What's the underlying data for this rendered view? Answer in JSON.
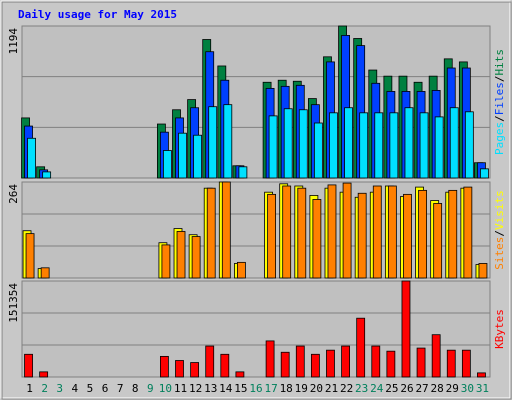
{
  "chart_data": [
    {
      "type": "bar",
      "title": "Daily usage for May 2015",
      "ylim": [
        0,
        1194
      ],
      "yticks": [
        1194
      ],
      "legend_separator": "/",
      "series": [
        {
          "name": "Pages",
          "color": "#00e0ff",
          "values": [
            312,
            48,
            0,
            0,
            0,
            0,
            0,
            0,
            0,
            216,
            352,
            336,
            560,
            576,
            88,
            0,
            488,
            544,
            536,
            432,
            512,
            552,
            512,
            512,
            512,
            552,
            512,
            480,
            552,
            520,
            72
          ]
        },
        {
          "name": "Files",
          "color": "#0040ff",
          "values": [
            408,
            64,
            0,
            0,
            0,
            0,
            0,
            0,
            0,
            360,
            472,
            552,
            992,
            768,
            96,
            0,
            704,
            720,
            728,
            576,
            912,
            1120,
            1040,
            744,
            680,
            680,
            680,
            688,
            864,
            864,
            120
          ]
        },
        {
          "name": "Hits",
          "color": "#008040",
          "values": [
            472,
            88,
            0,
            0,
            0,
            0,
            0,
            0,
            0,
            424,
            536,
            616,
            1088,
            880,
            96,
            0,
            752,
            768,
            760,
            624,
            952,
            1194,
            1096,
            848,
            800,
            800,
            752,
            800,
            936,
            912,
            120
          ]
        }
      ]
    },
    {
      "type": "bar",
      "ylim": [
        0,
        264
      ],
      "yticks": [
        264
      ],
      "legend_separator": "/",
      "series": [
        {
          "name": "Sites",
          "color": "#ff8000",
          "values": [
            122,
            28,
            0,
            0,
            0,
            0,
            0,
            0,
            0,
            91,
            128,
            114,
            247,
            264,
            43,
            0,
            230,
            253,
            247,
            216,
            256,
            261,
            233,
            253,
            253,
            230,
            241,
            205,
            241,
            250,
            40
          ]
        },
        {
          "name": "Visits",
          "color": "#ffff00",
          "values": [
            130,
            26,
            0,
            0,
            0,
            0,
            0,
            0,
            0,
            97,
            136,
            119,
            247,
            264,
            40,
            0,
            236,
            259,
            253,
            227,
            247,
            236,
            222,
            236,
            253,
            224,
            250,
            213,
            236,
            247,
            37
          ]
        }
      ]
    },
    {
      "type": "bar",
      "ylim": [
        0,
        151354
      ],
      "yticks": [
        151354
      ],
      "categories": [
        "1",
        "2",
        "3",
        "4",
        "5",
        "6",
        "7",
        "8",
        "9",
        "10",
        "11",
        "12",
        "13",
        "14",
        "15",
        "16",
        "17",
        "18",
        "19",
        "20",
        "21",
        "22",
        "23",
        "24",
        "25",
        "26",
        "27",
        "28",
        "29",
        "30",
        "31"
      ],
      "x_label_colors": [
        "#000000",
        "#00805c",
        "#00805c",
        "#000000",
        "#000000",
        "#000000",
        "#000000",
        "#000000",
        "#00805c",
        "#00805c",
        "#000000",
        "#000000",
        "#000000",
        "#000000",
        "#000000",
        "#00805c",
        "#00805c",
        "#000000",
        "#000000",
        "#000000",
        "#000000",
        "#000000",
        "#00805c",
        "#00805c",
        "#000000",
        "#000000",
        "#000000",
        "#000000",
        "#000000",
        "#00805c",
        "#00805c"
      ],
      "series": [
        {
          "name": "KBytes",
          "color": "#ff0000",
          "values": [
            35800,
            8100,
            0,
            0,
            0,
            0,
            0,
            0,
            0,
            32500,
            26000,
            22800,
            48800,
            35800,
            8100,
            0,
            56900,
            39000,
            48800,
            35800,
            42300,
            48800,
            92700,
            48800,
            40700,
            151354,
            45600,
            66700,
            42300,
            42300,
            6500
          ]
        }
      ]
    }
  ]
}
